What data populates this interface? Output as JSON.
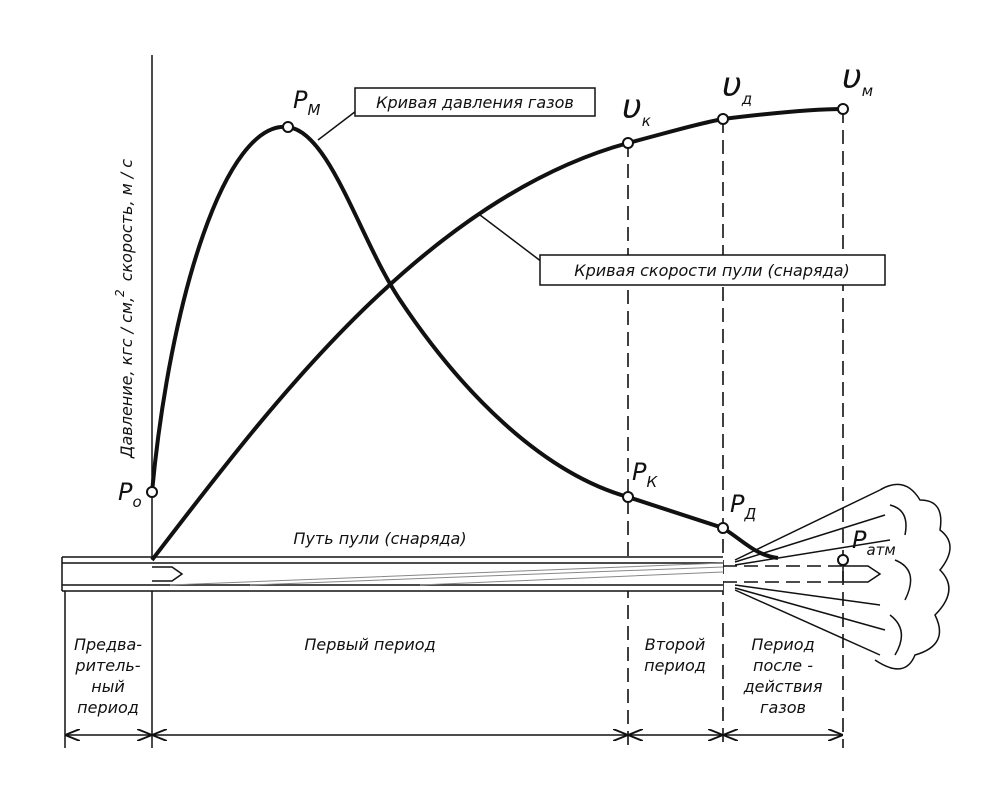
{
  "axis_label": {
    "main": "Давление, кгс / см,",
    "sup": "2",
    "rest": "скорость, м / с"
  },
  "points": {
    "p_o": {
      "symbol": "P",
      "sub": "о"
    },
    "p_m": {
      "symbol": "P",
      "sub": "М"
    },
    "p_k": {
      "symbol": "P",
      "sub": "К"
    },
    "p_d": {
      "symbol": "P",
      "sub": "Д"
    },
    "p_atm": {
      "symbol": "P",
      "sub": "атм"
    },
    "v_k": {
      "symbol": "υ",
      "sub": "к"
    },
    "v_d": {
      "symbol": "υ",
      "sub": "д"
    },
    "v_m": {
      "symbol": "υ",
      "sub": "м"
    }
  },
  "callouts": {
    "pressure": "Кривая давления газов",
    "velocity": "Кривая скорости пули  (снаряда)"
  },
  "path_label": "Путь пули  (снаряда)",
  "periods": {
    "preliminary": [
      "Предва-",
      "ритель-",
      "ный",
      "период"
    ],
    "first": [
      "Первый период"
    ],
    "second": [
      "Второй",
      "период"
    ],
    "after": [
      "Период",
      "после -",
      "действия",
      "газов"
    ]
  }
}
